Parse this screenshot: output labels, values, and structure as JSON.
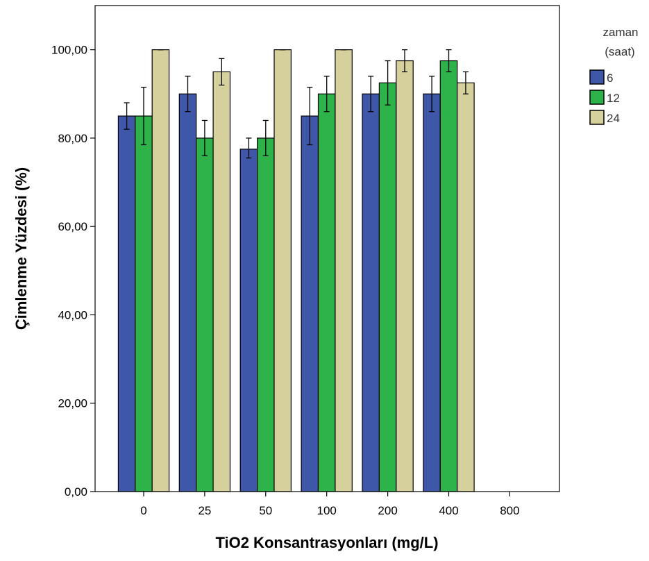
{
  "chart_data": {
    "type": "bar",
    "xlabel": "TiO2 Konsantrasyonları (mg/L)",
    "ylabel": "Çimlenme Yüzdesi (%)",
    "categories": [
      "0",
      "25",
      "50",
      "100",
      "200",
      "400",
      "800"
    ],
    "ylim": [
      0,
      110
    ],
    "yticks": [
      0,
      20,
      40,
      60,
      80,
      100
    ],
    "ytick_labels": [
      "0,00",
      "20,00",
      "40,00",
      "60,00",
      "80,00",
      "100,00"
    ],
    "grid": false,
    "legend_position": "top-right",
    "legend_title_line1": "zaman",
    "legend_title_line2": "(saat)",
    "series": [
      {
        "name": "6",
        "color": "#3f57a8",
        "values": [
          85,
          90,
          77.5,
          85,
          90,
          90,
          0
        ],
        "err_low": [
          82,
          86,
          75.5,
          78.5,
          86,
          86,
          0
        ],
        "err_high": [
          88,
          94,
          80,
          91.5,
          94,
          94,
          0
        ]
      },
      {
        "name": "12",
        "color": "#2db34a",
        "values": [
          85,
          80,
          80,
          90,
          92.5,
          97.5,
          0
        ],
        "err_low": [
          78.5,
          76,
          76,
          86,
          87.5,
          95,
          0
        ],
        "err_high": [
          91.5,
          84,
          84,
          94,
          97.5,
          100,
          0
        ]
      },
      {
        "name": "24",
        "color": "#d6d19c",
        "values": [
          100,
          95,
          100,
          100,
          97.5,
          92.5,
          0
        ],
        "err_low": [
          100,
          92,
          100,
          100,
          95,
          90,
          0
        ],
        "err_high": [
          100,
          98,
          100,
          100,
          100,
          95,
          0
        ]
      }
    ]
  }
}
